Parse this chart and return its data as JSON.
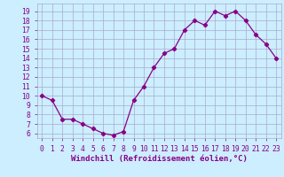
{
  "x": [
    0,
    1,
    2,
    3,
    4,
    5,
    6,
    7,
    8,
    9,
    10,
    11,
    12,
    13,
    14,
    15,
    16,
    17,
    18,
    19,
    20,
    21,
    22,
    23
  ],
  "y": [
    10,
    9.5,
    7.5,
    7.5,
    7.0,
    6.5,
    6.0,
    5.8,
    6.2,
    9.5,
    11.0,
    13.0,
    14.5,
    15.0,
    17.0,
    18.0,
    17.5,
    19.0,
    18.5,
    19.0,
    18.0,
    16.5,
    15.5,
    14.0
  ],
  "line_color": "#880088",
  "marker": "D",
  "markersize": 2.2,
  "linewidth": 0.9,
  "bg_color": "#cceeff",
  "grid_color": "#aaaacc",
  "xlabel": "Windchill (Refroidissement éolien,°C)",
  "xlabel_fontsize": 6.5,
  "ylabel_ticks": [
    6,
    7,
    8,
    9,
    10,
    11,
    12,
    13,
    14,
    15,
    16,
    17,
    18,
    19
  ],
  "xlim": [
    -0.5,
    23.5
  ],
  "ylim": [
    5.5,
    19.8
  ],
  "tick_fontsize": 5.8,
  "label_color": "#880088"
}
